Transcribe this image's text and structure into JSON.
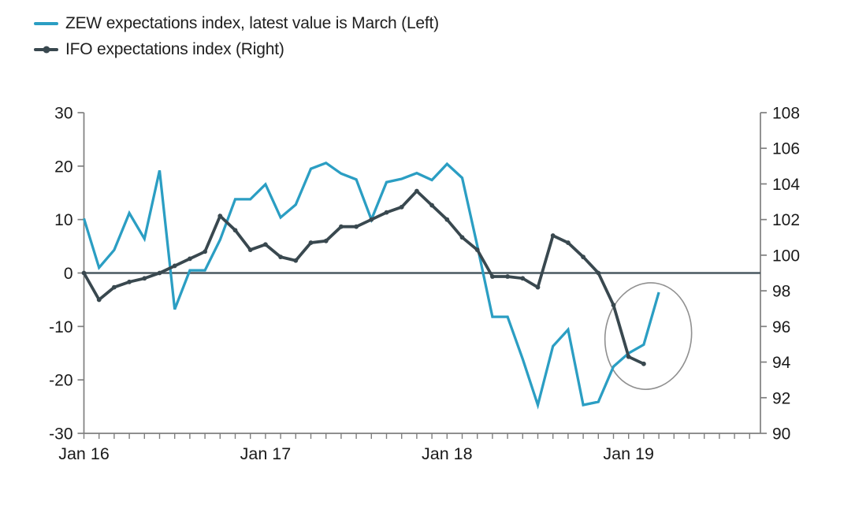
{
  "window": {
    "background": "#ffffff"
  },
  "chart_data": {
    "type": "line",
    "title": "",
    "legend_position": "top-left",
    "grid": false,
    "x_axis": {
      "unit": "month",
      "start": "Jan 2016",
      "tick_labels": [
        {
          "label": "Jan 16",
          "month": 0
        },
        {
          "label": "Jan 17",
          "month": 12
        },
        {
          "label": "Jan 18",
          "month": 24
        },
        {
          "label": "Jan 19",
          "month": 36
        }
      ],
      "minor_ticks_every_month": true,
      "minor_tick_count": 45
    },
    "left_axis": {
      "min": -30,
      "max": 30,
      "tick_values": [
        30,
        20,
        10,
        0,
        -10,
        -20,
        -30
      ],
      "tick_labels": [
        "30",
        "20",
        "10",
        "0",
        "-10",
        "-20",
        "-30"
      ]
    },
    "right_axis": {
      "min": 90,
      "max": 108,
      "tick_values": [
        108,
        106,
        104,
        102,
        100,
        98,
        96,
        94,
        92,
        90
      ],
      "tick_labels": [
        "108",
        "106",
        "104",
        "102",
        "100",
        "98",
        "96",
        "94",
        "92",
        "90"
      ]
    },
    "zero_line_left_value": 0,
    "series": [
      {
        "name": "ZEW expectations index, latest value is March (Left)",
        "axis": "left",
        "color": "#2B9EC3",
        "marker": false,
        "start_month": 0,
        "months": [
          "Jan 16",
          "Feb 16",
          "Mar 16",
          "Apr 16",
          "May 16",
          "Jun 16",
          "Jul 16",
          "Aug 16",
          "Sep 16",
          "Oct 16",
          "Nov 16",
          "Dec 16",
          "Jan 17",
          "Feb 17",
          "Mar 17",
          "Apr 17",
          "May 17",
          "Jun 17",
          "Jul 17",
          "Aug 17",
          "Sep 17",
          "Oct 17",
          "Nov 17",
          "Dec 17",
          "Jan 18",
          "Feb 18",
          "Mar 18",
          "Apr 18",
          "May 18",
          "Jun 18",
          "Jul 18",
          "Aug 18",
          "Sep 18",
          "Oct 18",
          "Nov 18",
          "Dec 18",
          "Jan 19",
          "Feb 19",
          "Mar 19"
        ],
        "values": [
          10.2,
          1.0,
          4.3,
          11.2,
          6.4,
          19.2,
          -6.8,
          0.5,
          0.5,
          6.2,
          13.8,
          13.8,
          16.6,
          10.4,
          12.8,
          19.5,
          20.6,
          18.6,
          17.5,
          10.0,
          17.0,
          17.6,
          18.7,
          17.4,
          20.4,
          17.8,
          5.1,
          -8.2,
          -8.2,
          -16.1,
          -24.7,
          -13.7,
          -10.6,
          -24.7,
          -24.1,
          -17.5,
          -15.0,
          -13.4,
          -3.6
        ]
      },
      {
        "name": "IFO expectations index (Right)",
        "axis": "right",
        "color": "#39484F",
        "marker": true,
        "start_month": 0,
        "months": [
          "Jan 16",
          "Feb 16",
          "Mar 16",
          "Apr 16",
          "May 16",
          "Jun 16",
          "Jul 16",
          "Aug 16",
          "Sep 16",
          "Oct 16",
          "Nov 16",
          "Dec 16",
          "Jan 17",
          "Feb 17",
          "Mar 17",
          "Apr 17",
          "May 17",
          "Jun 17",
          "Jul 17",
          "Aug 17",
          "Sep 17",
          "Oct 17",
          "Nov 17",
          "Dec 17",
          "Jan 18",
          "Feb 18",
          "Mar 18",
          "Apr 18",
          "May 18",
          "Jun 18",
          "Jul 18",
          "Aug 18",
          "Sep 18",
          "Oct 18",
          "Nov 18",
          "Dec 18",
          "Jan 19",
          "Feb 19"
        ],
        "values": [
          99.0,
          97.5,
          98.2,
          98.5,
          98.7,
          99.0,
          99.4,
          99.8,
          100.2,
          102.2,
          101.4,
          100.3,
          100.6,
          99.9,
          99.7,
          100.7,
          100.8,
          101.6,
          101.6,
          102.0,
          102.4,
          102.7,
          103.6,
          102.8,
          102.0,
          101.0,
          100.3,
          98.8,
          98.8,
          98.7,
          98.2,
          101.1,
          100.7,
          99.9,
          99.0,
          97.2,
          94.3,
          93.9
        ]
      }
    ],
    "annotation_ellipse": {
      "center_month": 37.3,
      "center_left_value": -11.8,
      "radius_months": 2.85,
      "radius_left_units": 10.0,
      "rotation_deg": 8,
      "color": "#909090"
    },
    "colors": {
      "axis": "#7f7f7f",
      "tick_text": "#1a1a1a",
      "zero_line": "#4a5960"
    }
  }
}
